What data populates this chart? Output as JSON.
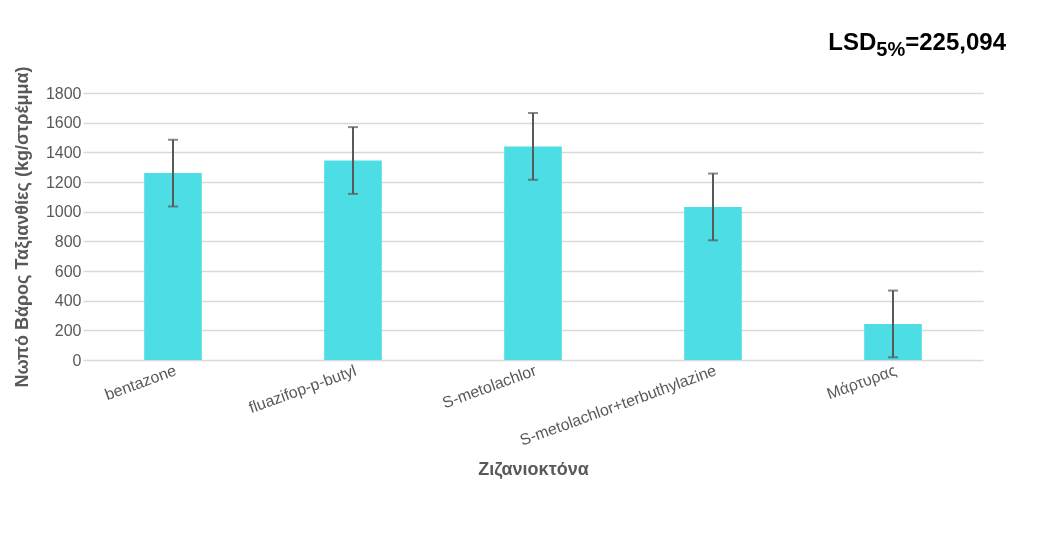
{
  "chart_data": {
    "type": "bar",
    "xlabel": "Ζιζανιοκτόνα",
    "ylabel": "Νωπό Βάρος Ταξιανθίες (kg/στρέμμα)",
    "categories": [
      "bentazone",
      "fluazifop-p-butyl",
      "S-metolachlor",
      "S-metolachlor+terbuthylazine",
      "Μάρτυρας"
    ],
    "values": [
      1260,
      1345,
      1440,
      1032,
      243
    ],
    "errors": [
      225,
      225,
      225,
      225,
      225
    ],
    "color": "#4ddde4",
    "ylim": [
      0,
      1800
    ],
    "yticks": [
      0,
      200,
      400,
      600,
      800,
      1000,
      1200,
      1400,
      1600,
      1800
    ],
    "grid": "y",
    "annotations": [
      "LSD$_{5%}$=225,094"
    ]
  }
}
